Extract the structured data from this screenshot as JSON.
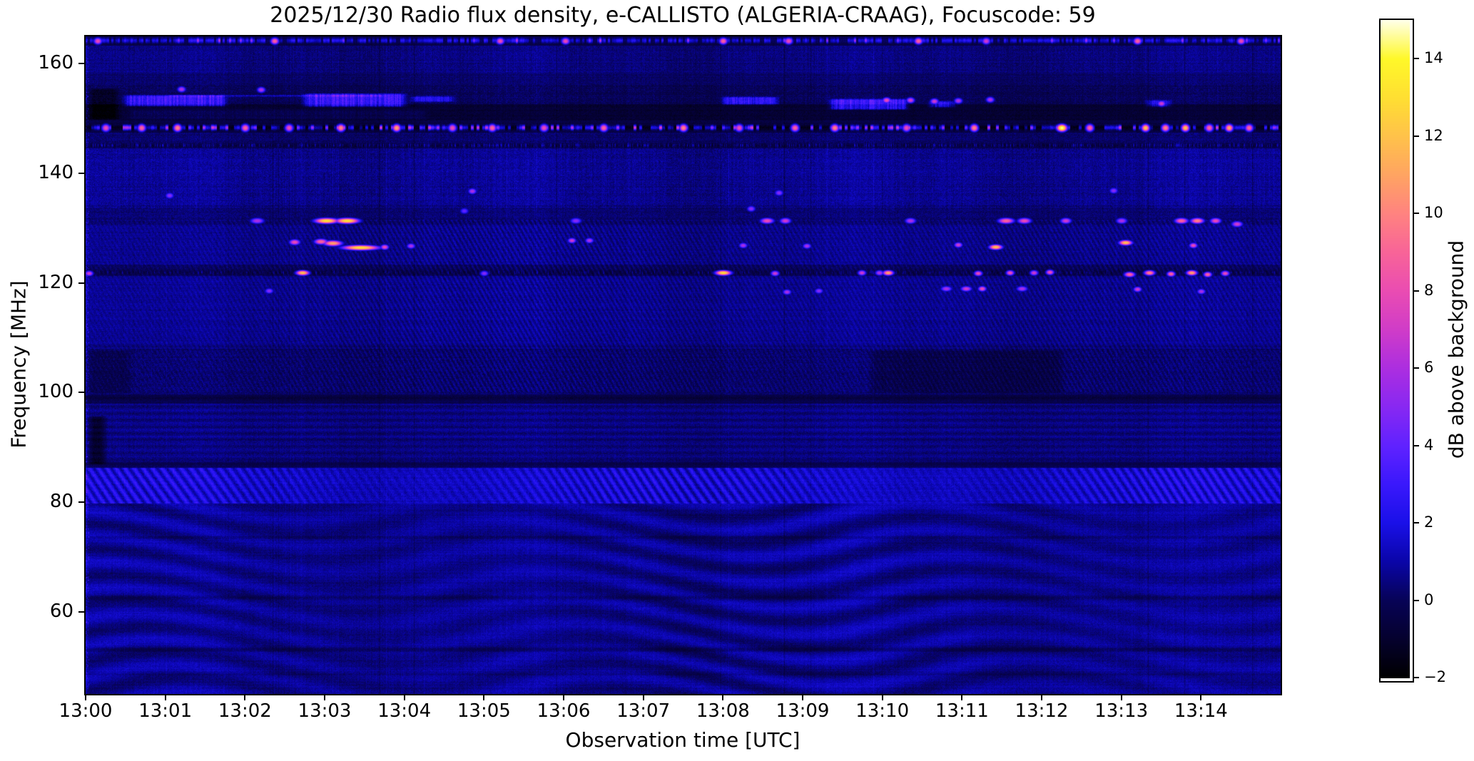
{
  "chart_data": {
    "type": "heatmap",
    "subtype": "radio-spectrogram",
    "title": "2025/12/30  Radio flux density, e-CALLISTO (ALGERIA-CRAAG), Focuscode: 59",
    "date": "2025/12/30",
    "instrument": "e-CALLISTO (ALGERIA-CRAAG)",
    "focuscode": "59",
    "xlabel": "Observation time [UTC]",
    "ylabel": "Frequency [MHz]",
    "colorbar_label": "dB above background",
    "x_tick_labels": [
      "13:00",
      "13:01",
      "13:02",
      "13:03",
      "13:04",
      "13:05",
      "13:06",
      "13:07",
      "13:08",
      "13:09",
      "13:10",
      "13:11",
      "13:12",
      "13:13",
      "13:14"
    ],
    "x_tick_minutes": [
      0,
      1,
      2,
      3,
      4,
      5,
      6,
      7,
      8,
      9,
      10,
      11,
      12,
      13,
      14
    ],
    "x_range_minutes": [
      0,
      15
    ],
    "y_tick_values": [
      160,
      140,
      120,
      100,
      80,
      60
    ],
    "freq_range_mhz": [
      45,
      165
    ],
    "value_range_db": [
      -2,
      15
    ],
    "colorbar_tick_values": [
      -2,
      0,
      2,
      4,
      6,
      8,
      10,
      12,
      14
    ],
    "colorbar_tick_labels": [
      "−2",
      "0",
      "2",
      "4",
      "6",
      "8",
      "10",
      "12",
      "14"
    ],
    "grid": false,
    "legend_position": "right-colorbar",
    "background_level_db": 0.75,
    "colormap_stops": [
      [
        -2,
        "#000000"
      ],
      [
        -1,
        "#05012e"
      ],
      [
        0,
        "#070356"
      ],
      [
        1,
        "#0a05a8"
      ],
      [
        2,
        "#1a10e8"
      ],
      [
        3,
        "#3a18fc"
      ],
      [
        4,
        "#6022ff"
      ],
      [
        5,
        "#8828f2"
      ],
      [
        6,
        "#ac2ee0"
      ],
      [
        7,
        "#d03cc8"
      ],
      [
        8,
        "#ea4cb2"
      ],
      [
        9,
        "#f86498"
      ],
      [
        10,
        "#ff8380"
      ],
      [
        11,
        "#ffa462"
      ],
      [
        12,
        "#ffc24a"
      ],
      [
        13,
        "#ffdf32"
      ],
      [
        14,
        "#fff829"
      ],
      [
        15,
        "#ffffe8"
      ]
    ],
    "bands": [
      [
        163.3,
        165.0,
        -1.15,
        0.3,
        0.3
      ],
      [
        158.3,
        163.3,
        -0.3,
        0.7,
        0.45
      ],
      [
        156.2,
        158.3,
        -0.55,
        0.5,
        0.4
      ],
      [
        152.6,
        156.2,
        -0.75,
        0.6,
        0.5
      ],
      [
        149.6,
        152.6,
        -1.6,
        0.35,
        0.4
      ],
      [
        147.4,
        149.6,
        -1.3,
        0.3,
        0.35
      ],
      [
        144.6,
        147.4,
        -0.55,
        0.5,
        0.45
      ],
      [
        133.6,
        144.6,
        -0.05,
        0.75,
        0.5
      ],
      [
        130.6,
        133.6,
        -0.45,
        0.5,
        0.45
      ],
      [
        123.4,
        130.6,
        -0.1,
        0.55,
        0.4
      ],
      [
        121.3,
        123.4,
        -0.75,
        0.4,
        0.4
      ],
      [
        108.0,
        121.3,
        -0.05,
        0.5,
        0.38
      ],
      [
        99.7,
        108.0,
        -0.5,
        0.45,
        0.5
      ],
      [
        98.0,
        99.7,
        -0.95,
        0.35,
        0.4
      ],
      [
        87.3,
        98.0,
        -0.3,
        0.45,
        0.42
      ],
      [
        86.2,
        87.3,
        -0.7,
        0.4,
        0.35
      ],
      [
        79.8,
        86.2,
        0.45,
        0.5,
        0.4
      ],
      [
        45.0,
        79.8,
        0.05,
        0.5,
        0.38
      ]
    ],
    "dark_lines": [
      [
        145.1,
        0.45,
        0.85
      ],
      [
        121.9,
        0.45,
        0.5
      ],
      [
        99.0,
        0.5,
        0.4
      ],
      [
        108.4,
        0.35,
        0.35
      ],
      [
        134.0,
        0.3,
        0.3
      ],
      [
        87.0,
        0.4,
        0.4
      ],
      [
        73.6,
        0.35,
        0.5
      ],
      [
        62.6,
        0.4,
        0.6
      ],
      [
        53.1,
        0.45,
        0.85
      ],
      [
        48.6,
        0.4,
        0.5
      ]
    ],
    "dot_lines": [
      {
        "f": 164.25,
        "sigma": 0.45,
        "cell": 3,
        "kind": "top"
      },
      {
        "f": 148.35,
        "sigma": 0.42,
        "cell": 4,
        "kind": "rfi"
      }
    ],
    "speckle_lines": [
      [
        145.1,
        0.32,
        0.45,
        4.0,
        "B"
      ],
      [
        121.9,
        0.3,
        0.55,
        3.2,
        "C"
      ]
    ],
    "patches": [
      [
        0.45,
        1.8,
        152.1,
        154.4,
        3.8
      ],
      [
        2.7,
        4.05,
        152.0,
        154.7,
        4.0
      ],
      [
        4.05,
        4.65,
        152.9,
        154.2,
        3.0
      ],
      [
        7.95,
        8.72,
        152.4,
        154.1,
        3.5
      ],
      [
        9.3,
        10.35,
        151.5,
        153.7,
        4.1
      ],
      [
        10.55,
        10.95,
        151.9,
        153.3,
        3.2
      ],
      [
        13.28,
        13.65,
        152.0,
        153.5,
        3.0
      ],
      [
        1.0,
        3.8,
        153.9,
        154.4,
        2.8
      ],
      [
        0.5,
        4.3,
        149.7,
        151.8,
        0.85
      ],
      [
        0.0,
        0.45,
        149.7,
        155.6,
        -1.2
      ],
      [
        9.8,
        12.3,
        99.8,
        107.8,
        -0.55
      ],
      [
        0.0,
        0.6,
        99.8,
        107.8,
        -0.5
      ],
      [
        0.0,
        0.28,
        86.8,
        95.8,
        -1.5
      ]
    ],
    "transients": [
      [
        0.15,
        164.2,
        8,
        3,
        0.7
      ],
      [
        2.37,
        164.2,
        9,
        3,
        0.7
      ],
      [
        5.2,
        164.2,
        8,
        3,
        0.7
      ],
      [
        6.02,
        164.2,
        8,
        3,
        0.7
      ],
      [
        8.0,
        164.2,
        9,
        3,
        0.7
      ],
      [
        8.82,
        164.2,
        8,
        3,
        0.7
      ],
      [
        10.45,
        164.2,
        9,
        3,
        0.7
      ],
      [
        11.3,
        164.2,
        7,
        3,
        0.7
      ],
      [
        13.2,
        164.2,
        9,
        3,
        0.7
      ],
      [
        14.5,
        164.2,
        8,
        3,
        0.7
      ],
      [
        0.25,
        148.35,
        8,
        3,
        0.8
      ],
      [
        0.7,
        148.35,
        9,
        3,
        0.8
      ],
      [
        1.15,
        148.35,
        10,
        3,
        0.8
      ],
      [
        2.0,
        148.35,
        9,
        3,
        0.8
      ],
      [
        2.55,
        148.35,
        8,
        3,
        0.8
      ],
      [
        3.2,
        148.35,
        10,
        3,
        0.8
      ],
      [
        3.9,
        148.35,
        11,
        3,
        0.8
      ],
      [
        4.6,
        148.35,
        8,
        3,
        0.8
      ],
      [
        5.1,
        148.35,
        9,
        3,
        0.8
      ],
      [
        5.75,
        148.35,
        8,
        3,
        0.8
      ],
      [
        6.5,
        148.35,
        9,
        3,
        0.8
      ],
      [
        7.5,
        148.35,
        10,
        3,
        0.8
      ],
      [
        8.2,
        148.35,
        8,
        3,
        0.8
      ],
      [
        8.9,
        148.35,
        9,
        3,
        0.8
      ],
      [
        9.4,
        148.35,
        10,
        3,
        0.8
      ],
      [
        10.3,
        148.35,
        8,
        3,
        0.8
      ],
      [
        11.15,
        148.35,
        10,
        3,
        0.8
      ],
      [
        12.25,
        148.35,
        14.6,
        4,
        0.8
      ],
      [
        12.6,
        148.35,
        9,
        3,
        0.8
      ],
      [
        13.3,
        148.35,
        12,
        3,
        0.8
      ],
      [
        13.55,
        148.35,
        10,
        3,
        0.8
      ],
      [
        13.8,
        148.35,
        12,
        3,
        0.8
      ],
      [
        14.1,
        148.35,
        9,
        3,
        0.8
      ],
      [
        14.35,
        148.35,
        11,
        3,
        0.8
      ],
      [
        14.6,
        148.35,
        9,
        3,
        0.8
      ],
      [
        10.05,
        153.4,
        8,
        3,
        0.6
      ],
      [
        10.35,
        153.4,
        7,
        3,
        0.6
      ],
      [
        10.65,
        153.2,
        7,
        3,
        0.6
      ],
      [
        10.95,
        153.3,
        6,
        3,
        0.6
      ],
      [
        11.35,
        153.5,
        6,
        3,
        0.6
      ],
      [
        13.5,
        152.8,
        7,
        3,
        0.6
      ],
      [
        1.2,
        155.4,
        6,
        3,
        0.6
      ],
      [
        2.2,
        155.3,
        6,
        3,
        0.6
      ],
      [
        2.15,
        131.4,
        6,
        5,
        0.6
      ],
      [
        3.02,
        131.4,
        13,
        9,
        0.6
      ],
      [
        3.28,
        131.4,
        13,
        9,
        0.6
      ],
      [
        6.15,
        131.4,
        5,
        4,
        0.6
      ],
      [
        8.55,
        131.4,
        8,
        5,
        0.6
      ],
      [
        8.78,
        131.4,
        7,
        4,
        0.6
      ],
      [
        10.35,
        131.4,
        6,
        4,
        0.6
      ],
      [
        11.55,
        131.4,
        9,
        6,
        0.6
      ],
      [
        11.78,
        131.4,
        8,
        5,
        0.6
      ],
      [
        12.3,
        131.4,
        7,
        4,
        0.6
      ],
      [
        13.0,
        131.4,
        6,
        4,
        0.6
      ],
      [
        13.75,
        131.4,
        9,
        5,
        0.6
      ],
      [
        13.95,
        131.4,
        10,
        5,
        0.6
      ],
      [
        14.18,
        131.4,
        8,
        4,
        0.6
      ],
      [
        14.45,
        130.8,
        7,
        4,
        0.6
      ],
      [
        2.62,
        127.5,
        8,
        4,
        0.6
      ],
      [
        2.95,
        127.6,
        9,
        5,
        0.6
      ],
      [
        3.1,
        127.3,
        11,
        7,
        0.6
      ],
      [
        3.45,
        126.5,
        13,
        14,
        0.55
      ],
      [
        3.75,
        126.6,
        8,
        3,
        0.55
      ],
      [
        4.08,
        126.8,
        6,
        3,
        0.55
      ],
      [
        6.1,
        127.8,
        7,
        3,
        0.55
      ],
      [
        6.32,
        127.8,
        6,
        3,
        0.55
      ],
      [
        8.25,
        126.9,
        6,
        3,
        0.55
      ],
      [
        9.05,
        126.8,
        6,
        3,
        0.55
      ],
      [
        10.95,
        127.0,
        7,
        3,
        0.55
      ],
      [
        11.42,
        126.6,
        12,
        5,
        0.55
      ],
      [
        13.05,
        127.4,
        12,
        5,
        0.55
      ],
      [
        13.9,
        126.9,
        8,
        3,
        0.55
      ],
      [
        0.04,
        121.8,
        7,
        3,
        0.55
      ],
      [
        2.72,
        121.9,
        12,
        5,
        0.55
      ],
      [
        5.0,
        121.8,
        5,
        3,
        0.55
      ],
      [
        8.0,
        121.9,
        13,
        6,
        0.55
      ],
      [
        8.65,
        121.8,
        7,
        3,
        0.55
      ],
      [
        9.74,
        121.9,
        7,
        3,
        0.55
      ],
      [
        9.96,
        121.9,
        6,
        3,
        0.55
      ],
      [
        10.07,
        121.9,
        11,
        4,
        0.55
      ],
      [
        11.2,
        121.8,
        8,
        3,
        0.55
      ],
      [
        11.6,
        121.9,
        8,
        3,
        0.55
      ],
      [
        11.9,
        121.9,
        7,
        3,
        0.55
      ],
      [
        12.1,
        122.0,
        8,
        3,
        0.55
      ],
      [
        13.1,
        121.6,
        9,
        4,
        0.55
      ],
      [
        13.35,
        121.9,
        10,
        4,
        0.55
      ],
      [
        13.62,
        121.7,
        9,
        3,
        0.55
      ],
      [
        13.88,
        121.9,
        11,
        4,
        0.55
      ],
      [
        14.08,
        121.6,
        9,
        3,
        0.55
      ],
      [
        14.3,
        121.8,
        8,
        3,
        0.55
      ],
      [
        2.3,
        118.6,
        5,
        3,
        0.55
      ],
      [
        8.8,
        118.4,
        6,
        3,
        0.55
      ],
      [
        9.2,
        118.6,
        5,
        3,
        0.55
      ],
      [
        10.8,
        119.0,
        6,
        4,
        0.55
      ],
      [
        11.05,
        119.0,
        7,
        4,
        0.55
      ],
      [
        11.25,
        119.0,
        8,
        3,
        0.55
      ],
      [
        11.75,
        119.0,
        6,
        4,
        0.55
      ],
      [
        13.2,
        118.9,
        7,
        3,
        0.55
      ],
      [
        14.0,
        118.5,
        6,
        3,
        0.55
      ],
      [
        4.85,
        136.8,
        6,
        3,
        0.6
      ],
      [
        8.7,
        136.5,
        5,
        3,
        0.6
      ],
      [
        12.9,
        136.9,
        5,
        3,
        0.6
      ],
      [
        1.05,
        136.0,
        5,
        3,
        0.6
      ],
      [
        8.35,
        133.6,
        5,
        3,
        0.6
      ],
      [
        4.75,
        133.2,
        4,
        3,
        0.6
      ]
    ]
  }
}
